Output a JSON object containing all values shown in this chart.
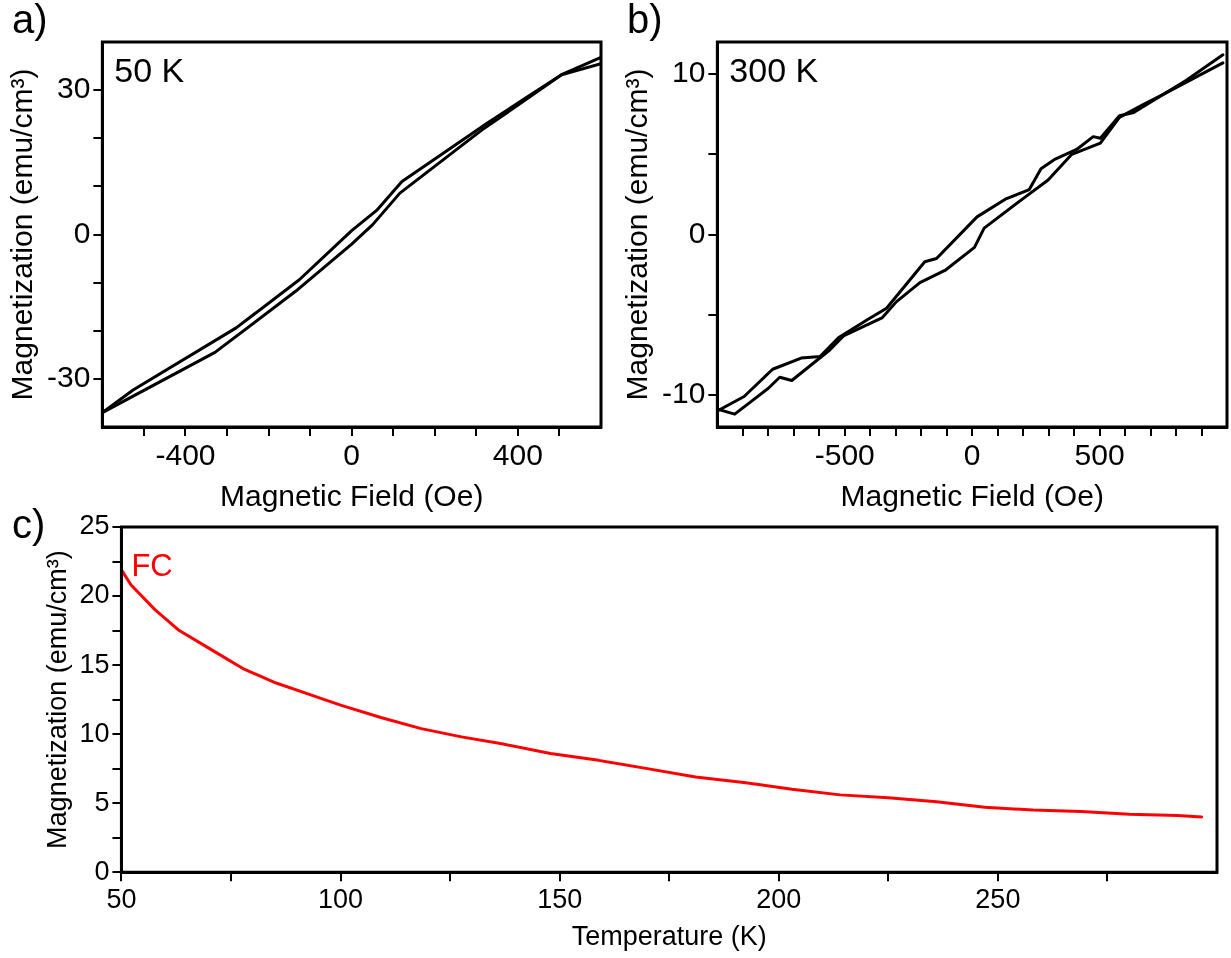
{
  "chart_data": [
    {
      "type": "line",
      "title": "a)",
      "xlabel": "Magnetic Field (Oe)",
      "ylabel": "Magnetization (emu/cm³)",
      "annotations": [
        "50 K"
      ],
      "xlim": [
        -600,
        600
      ],
      "xticks": [
        {
          "value": -500,
          "label": null
        },
        -400,
        {
          "value": -300,
          "label": null
        },
        {
          "value": -200,
          "label": null
        },
        {
          "value": -100,
          "label": null
        },
        0,
        {
          "value": 100,
          "label": null
        },
        {
          "value": 200,
          "label": null
        },
        {
          "value": 300,
          "label": null
        },
        400,
        {
          "value": 500,
          "label": null
        }
      ],
      "ylim": [
        -40,
        40
      ],
      "yticks": [
        {
          "value": -20,
          "label": null
        },
        -30,
        {
          "value": -10,
          "label": null
        },
        0,
        {
          "value": 10,
          "label": null
        },
        {
          "value": 20,
          "label": null
        },
        30
      ],
      "grid": false,
      "legend": false,
      "marker": "none",
      "line_style": "solid",
      "series": [
        {
          "color": "#000000",
          "x": [
            -600,
            -526,
            -278,
            -126,
            0,
            60,
            121,
            324,
            426,
            505,
            600
          ],
          "values": [
            -37,
            -32.3,
            -19.4,
            -9.4,
            0.8,
            5,
            11,
            23,
            28.8,
            33.2,
            36.8
          ]
        },
        {
          "color": "#000000",
          "x": [
            -600,
            -329,
            -135,
            0,
            50,
            116,
            313,
            409,
            505,
            600
          ],
          "values": [
            -37,
            -24.5,
            -11.8,
            -2,
            2,
            8.6,
            21.7,
            27.4,
            33.2,
            35.5
          ]
        }
      ]
    },
    {
      "type": "line",
      "title": "b)",
      "xlabel": "Magnetic Field (Oe)",
      "ylabel": "Magnetization (emu/cm³)",
      "annotations": [
        "300 K"
      ],
      "xlim": [
        -1000,
        1000
      ],
      "xticks": [
        {
          "value": -900,
          "label": null
        },
        {
          "value": -800,
          "label": null
        },
        {
          "value": -700,
          "label": null
        },
        {
          "value": -600,
          "label": null
        },
        -500,
        {
          "value": -400,
          "label": null
        },
        {
          "value": -300,
          "label": null
        },
        {
          "value": -200,
          "label": null
        },
        {
          "value": -100,
          "label": null
        },
        0,
        {
          "value": 100,
          "label": null
        },
        {
          "value": 200,
          "label": null
        },
        {
          "value": 300,
          "label": null
        },
        {
          "value": 400,
          "label": null
        },
        500,
        {
          "value": 600,
          "label": null
        },
        {
          "value": 700,
          "label": null
        },
        {
          "value": 800,
          "label": null
        },
        {
          "value": 900,
          "label": null
        }
      ],
      "ylim": [
        -12,
        12
      ],
      "yticks": [
        -10,
        {
          "value": -5,
          "label": null
        },
        0,
        {
          "value": 5,
          "label": null
        },
        10
      ],
      "grid": false,
      "legend": false,
      "marker": "none",
      "line_style": "solid",
      "series": [
        {
          "color": "#000000",
          "x": [
            -1000,
            -895,
            -783,
            -671,
            -596,
            -522,
            -410,
            -336,
            -186,
            -140,
            19,
            130,
            224,
            270,
            326,
            410,
            475,
            503,
            578,
            634,
            746,
            839,
            984
          ],
          "values": [
            -11.0,
            -10.1,
            -8.4,
            -7.7,
            -7.6,
            -6.4,
            -5.3,
            -4.6,
            -1.7,
            -1.5,
            1.1,
            2.2,
            2.8,
            4.1,
            4.7,
            5.3,
            6.1,
            6.0,
            7.4,
            7.6,
            8.7,
            9.6,
            11.2
          ]
        },
        {
          "color": "#000000",
          "x": [
            -997,
            -932,
            -801,
            -755,
            -708,
            -559,
            -503,
            -354,
            -298,
            -205,
            -103,
            9,
            47,
            205,
            298,
            391,
            503,
            578,
            671,
            746,
            984
          ],
          "values": [
            -10.9,
            -11.2,
            -9.6,
            -8.9,
            -9.1,
            -7.2,
            -6.3,
            -5.2,
            -4.2,
            -3.0,
            -2.2,
            -0.8,
            0.4,
            2.3,
            3.4,
            5.0,
            5.7,
            7.3,
            8.1,
            8.7,
            10.7
          ]
        }
      ]
    },
    {
      "type": "line",
      "title": "c)",
      "xlabel": "Temperature (K)",
      "ylabel": "Magnetization (emu/cm³)",
      "xlim": [
        50,
        300
      ],
      "xticks": [
        50,
        {
          "value": 75,
          "label": null
        },
        100,
        {
          "value": 125,
          "label": null
        },
        150,
        {
          "value": 175,
          "label": null
        },
        200,
        {
          "value": 225,
          "label": null
        },
        250,
        {
          "value": 275,
          "label": null
        }
      ],
      "ylim": [
        0,
        25
      ],
      "yticks": [
        0,
        {
          "value": 2.5,
          "label": null
        },
        5,
        {
          "value": 7.5,
          "label": null
        },
        10,
        {
          "value": 12.5,
          "label": null
        },
        15,
        {
          "value": 17.5,
          "label": null
        },
        20,
        {
          "value": 22.5,
          "label": null
        },
        25
      ],
      "grid": false,
      "legend": false,
      "marker": "none",
      "line_style": "solid",
      "series": [
        {
          "name": "FC",
          "color": "#ff0000",
          "x": [
            50,
            52.2,
            57.7,
            63.2,
            70.6,
            78,
            85.3,
            92.7,
            100,
            109.2,
            118.4,
            127.6,
            136.8,
            147.9,
            158.9,
            170,
            181,
            192,
            203,
            214,
            225,
            236,
            247,
            258,
            269,
            280,
            291,
            296.5
          ],
          "values": [
            21.9,
            20.8,
            19.0,
            17.5,
            16.1,
            14.7,
            13.7,
            12.9,
            12.1,
            11.2,
            10.4,
            9.8,
            9.3,
            8.6,
            8.1,
            7.5,
            6.9,
            6.5,
            6.0,
            5.6,
            5.4,
            5.1,
            4.7,
            4.5,
            4.4,
            4.2,
            4.1,
            4.0
          ]
        }
      ]
    }
  ]
}
